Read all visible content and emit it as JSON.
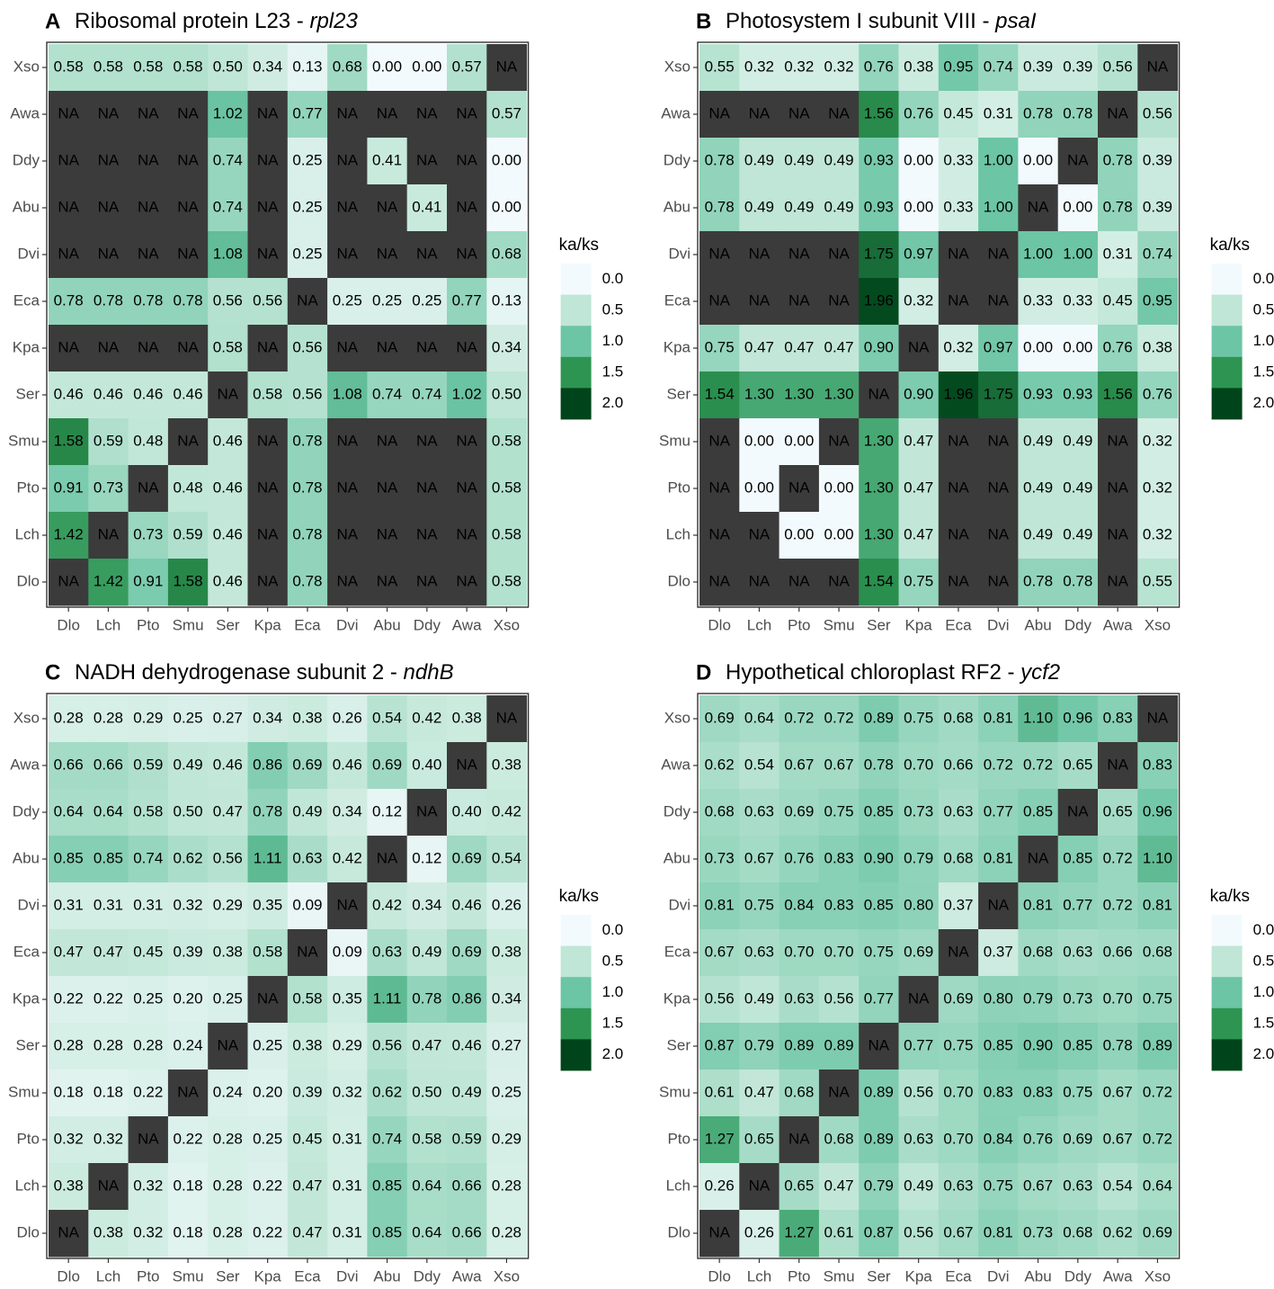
{
  "figure": {
    "legend": {
      "title": "ka/ks",
      "breaks": [
        "0.0",
        "0.5",
        "1.0",
        "1.5",
        "2.0"
      ],
      "color_stops": [
        {
          "v": 0.0,
          "c": "#f3fafd"
        },
        {
          "v": 0.5,
          "c": "#bfe6d6"
        },
        {
          "v": 1.0,
          "c": "#6cc5a5"
        },
        {
          "v": 1.5,
          "c": "#2e9452"
        },
        {
          "v": 2.0,
          "c": "#00441b"
        }
      ],
      "na_color": "#3b3b3b"
    }
  },
  "chart_data": [
    {
      "type": "heatmap",
      "letter": "A",
      "title": "Ribosomal protein L23 - ",
      "title_italic": "rpl23",
      "x": [
        "Dlo",
        "Lch",
        "Pto",
        "Smu",
        "Ser",
        "Kpa",
        "Eca",
        "Dvi",
        "Abu",
        "Ddy",
        "Awa",
        "Xso"
      ],
      "y": [
        "Xso",
        "Awa",
        "Ddy",
        "Abu",
        "Dvi",
        "Eca",
        "Kpa",
        "Ser",
        "Smu",
        "Pto",
        "Lch",
        "Dlo"
      ],
      "values": [
        [
          "0.58",
          "0.58",
          "0.58",
          "0.58",
          "0.50",
          "0.34",
          "0.13",
          "0.68",
          "0.00",
          "0.00",
          "0.57",
          "NA"
        ],
        [
          "NA",
          "NA",
          "NA",
          "NA",
          "1.02",
          "NA",
          "0.77",
          "NA",
          "NA",
          "NA",
          "NA",
          "0.57"
        ],
        [
          "NA",
          "NA",
          "NA",
          "NA",
          "0.74",
          "NA",
          "0.25",
          "NA",
          "0.41",
          "NA",
          "NA",
          "0.00"
        ],
        [
          "NA",
          "NA",
          "NA",
          "NA",
          "0.74",
          "NA",
          "0.25",
          "NA",
          "NA",
          "0.41",
          "NA",
          "0.00"
        ],
        [
          "NA",
          "NA",
          "NA",
          "NA",
          "1.08",
          "NA",
          "0.25",
          "NA",
          "NA",
          "NA",
          "NA",
          "0.68"
        ],
        [
          "0.78",
          "0.78",
          "0.78",
          "0.78",
          "0.56",
          "0.56",
          "NA",
          "0.25",
          "0.25",
          "0.25",
          "0.77",
          "0.13"
        ],
        [
          "NA",
          "NA",
          "NA",
          "NA",
          "0.58",
          "NA",
          "0.56",
          "NA",
          "NA",
          "NA",
          "NA",
          "0.34"
        ],
        [
          "0.46",
          "0.46",
          "0.46",
          "0.46",
          "NA",
          "0.58",
          "0.56",
          "1.08",
          "0.74",
          "0.74",
          "1.02",
          "0.50"
        ],
        [
          "1.58",
          "0.59",
          "0.48",
          "NA",
          "0.46",
          "NA",
          "0.78",
          "NA",
          "NA",
          "NA",
          "NA",
          "0.58"
        ],
        [
          "0.91",
          "0.73",
          "NA",
          "0.48",
          "0.46",
          "NA",
          "0.78",
          "NA",
          "NA",
          "NA",
          "NA",
          "0.58"
        ],
        [
          "1.42",
          "NA",
          "0.73",
          "0.59",
          "0.46",
          "NA",
          "0.78",
          "NA",
          "NA",
          "NA",
          "NA",
          "0.58"
        ],
        [
          "NA",
          "1.42",
          "0.91",
          "1.58",
          "0.46",
          "NA",
          "0.78",
          "NA",
          "NA",
          "NA",
          "NA",
          "0.58"
        ]
      ]
    },
    {
      "type": "heatmap",
      "letter": "B",
      "title": "Photosystem I subunit VIII - ",
      "title_italic": "psaI",
      "x": [
        "Dlo",
        "Lch",
        "Pto",
        "Smu",
        "Ser",
        "Kpa",
        "Eca",
        "Dvi",
        "Abu",
        "Ddy",
        "Awa",
        "Xso"
      ],
      "y": [
        "Xso",
        "Awa",
        "Ddy",
        "Abu",
        "Dvi",
        "Eca",
        "Kpa",
        "Ser",
        "Smu",
        "Pto",
        "Lch",
        "Dlo"
      ],
      "values": [
        [
          "0.55",
          "0.32",
          "0.32",
          "0.32",
          "0.76",
          "0.38",
          "0.95",
          "0.74",
          "0.39",
          "0.39",
          "0.56",
          "NA"
        ],
        [
          "NA",
          "NA",
          "NA",
          "NA",
          "1.56",
          "0.76",
          "0.45",
          "0.31",
          "0.78",
          "0.78",
          "NA",
          "0.56"
        ],
        [
          "0.78",
          "0.49",
          "0.49",
          "0.49",
          "0.93",
          "0.00",
          "0.33",
          "1.00",
          "0.00",
          "NA",
          "0.78",
          "0.39"
        ],
        [
          "0.78",
          "0.49",
          "0.49",
          "0.49",
          "0.93",
          "0.00",
          "0.33",
          "1.00",
          "NA",
          "0.00",
          "0.78",
          "0.39"
        ],
        [
          "NA",
          "NA",
          "NA",
          "NA",
          "1.75",
          "0.97",
          "NA",
          "NA",
          "1.00",
          "1.00",
          "0.31",
          "0.74"
        ],
        [
          "NA",
          "NA",
          "NA",
          "NA",
          "1.96",
          "0.32",
          "NA",
          "NA",
          "0.33",
          "0.33",
          "0.45",
          "0.95"
        ],
        [
          "0.75",
          "0.47",
          "0.47",
          "0.47",
          "0.90",
          "NA",
          "0.32",
          "0.97",
          "0.00",
          "0.00",
          "0.76",
          "0.38"
        ],
        [
          "1.54",
          "1.30",
          "1.30",
          "1.30",
          "NA",
          "0.90",
          "1.96",
          "1.75",
          "0.93",
          "0.93",
          "1.56",
          "0.76"
        ],
        [
          "NA",
          "0.00",
          "0.00",
          "NA",
          "1.30",
          "0.47",
          "NA",
          "NA",
          "0.49",
          "0.49",
          "NA",
          "0.32"
        ],
        [
          "NA",
          "0.00",
          "NA",
          "0.00",
          "1.30",
          "0.47",
          "NA",
          "NA",
          "0.49",
          "0.49",
          "NA",
          "0.32"
        ],
        [
          "NA",
          "NA",
          "0.00",
          "0.00",
          "1.30",
          "0.47",
          "NA",
          "NA",
          "0.49",
          "0.49",
          "NA",
          "0.32"
        ],
        [
          "NA",
          "NA",
          "NA",
          "NA",
          "1.54",
          "0.75",
          "NA",
          "NA",
          "0.78",
          "0.78",
          "NA",
          "0.55"
        ]
      ]
    },
    {
      "type": "heatmap",
      "letter": "C",
      "title": "NADH dehydrogenase subunit 2 - ",
      "title_italic": "ndhB",
      "x": [
        "Dlo",
        "Lch",
        "Pto",
        "Smu",
        "Ser",
        "Kpa",
        "Eca",
        "Dvi",
        "Abu",
        "Ddy",
        "Awa",
        "Xso"
      ],
      "y": [
        "Xso",
        "Awa",
        "Ddy",
        "Abu",
        "Dvi",
        "Eca",
        "Kpa",
        "Ser",
        "Smu",
        "Pto",
        "Lch",
        "Dlo"
      ],
      "values": [
        [
          "0.28",
          "0.28",
          "0.29",
          "0.25",
          "0.27",
          "0.34",
          "0.38",
          "0.26",
          "0.54",
          "0.42",
          "0.38",
          "NA"
        ],
        [
          "0.66",
          "0.66",
          "0.59",
          "0.49",
          "0.46",
          "0.86",
          "0.69",
          "0.46",
          "0.69",
          "0.40",
          "NA",
          "0.38"
        ],
        [
          "0.64",
          "0.64",
          "0.58",
          "0.50",
          "0.47",
          "0.78",
          "0.49",
          "0.34",
          "0.12",
          "NA",
          "0.40",
          "0.42"
        ],
        [
          "0.85",
          "0.85",
          "0.74",
          "0.62",
          "0.56",
          "1.11",
          "0.63",
          "0.42",
          "NA",
          "0.12",
          "0.69",
          "0.54"
        ],
        [
          "0.31",
          "0.31",
          "0.31",
          "0.32",
          "0.29",
          "0.35",
          "0.09",
          "NA",
          "0.42",
          "0.34",
          "0.46",
          "0.26"
        ],
        [
          "0.47",
          "0.47",
          "0.45",
          "0.39",
          "0.38",
          "0.58",
          "NA",
          "0.09",
          "0.63",
          "0.49",
          "0.69",
          "0.38"
        ],
        [
          "0.22",
          "0.22",
          "0.25",
          "0.20",
          "0.25",
          "NA",
          "0.58",
          "0.35",
          "1.11",
          "0.78",
          "0.86",
          "0.34"
        ],
        [
          "0.28",
          "0.28",
          "0.28",
          "0.24",
          "NA",
          "0.25",
          "0.38",
          "0.29",
          "0.56",
          "0.47",
          "0.46",
          "0.27"
        ],
        [
          "0.18",
          "0.18",
          "0.22",
          "NA",
          "0.24",
          "0.20",
          "0.39",
          "0.32",
          "0.62",
          "0.50",
          "0.49",
          "0.25"
        ],
        [
          "0.32",
          "0.32",
          "NA",
          "0.22",
          "0.28",
          "0.25",
          "0.45",
          "0.31",
          "0.74",
          "0.58",
          "0.59",
          "0.29"
        ],
        [
          "0.38",
          "NA",
          "0.32",
          "0.18",
          "0.28",
          "0.22",
          "0.47",
          "0.31",
          "0.85",
          "0.64",
          "0.66",
          "0.28"
        ],
        [
          "NA",
          "0.38",
          "0.32",
          "0.18",
          "0.28",
          "0.22",
          "0.47",
          "0.31",
          "0.85",
          "0.64",
          "0.66",
          "0.28"
        ]
      ]
    },
    {
      "type": "heatmap",
      "letter": "D",
      "title": "Hypothetical chloroplast RF2 - ",
      "title_italic": "ycf2",
      "x": [
        "Dlo",
        "Lch",
        "Pto",
        "Smu",
        "Ser",
        "Kpa",
        "Eca",
        "Dvi",
        "Abu",
        "Ddy",
        "Awa",
        "Xso"
      ],
      "y": [
        "Xso",
        "Awa",
        "Ddy",
        "Abu",
        "Dvi",
        "Eca",
        "Kpa",
        "Ser",
        "Smu",
        "Pto",
        "Lch",
        "Dlo"
      ],
      "values": [
        [
          "0.69",
          "0.64",
          "0.72",
          "0.72",
          "0.89",
          "0.75",
          "0.68",
          "0.81",
          "1.10",
          "0.96",
          "0.83",
          "NA"
        ],
        [
          "0.62",
          "0.54",
          "0.67",
          "0.67",
          "0.78",
          "0.70",
          "0.66",
          "0.72",
          "0.72",
          "0.65",
          "NA",
          "0.83"
        ],
        [
          "0.68",
          "0.63",
          "0.69",
          "0.75",
          "0.85",
          "0.73",
          "0.63",
          "0.77",
          "0.85",
          "NA",
          "0.65",
          "0.96"
        ],
        [
          "0.73",
          "0.67",
          "0.76",
          "0.83",
          "0.90",
          "0.79",
          "0.68",
          "0.81",
          "NA",
          "0.85",
          "0.72",
          "1.10"
        ],
        [
          "0.81",
          "0.75",
          "0.84",
          "0.83",
          "0.85",
          "0.80",
          "0.37",
          "NA",
          "0.81",
          "0.77",
          "0.72",
          "0.81"
        ],
        [
          "0.67",
          "0.63",
          "0.70",
          "0.70",
          "0.75",
          "0.69",
          "NA",
          "0.37",
          "0.68",
          "0.63",
          "0.66",
          "0.68"
        ],
        [
          "0.56",
          "0.49",
          "0.63",
          "0.56",
          "0.77",
          "NA",
          "0.69",
          "0.80",
          "0.79",
          "0.73",
          "0.70",
          "0.75"
        ],
        [
          "0.87",
          "0.79",
          "0.89",
          "0.89",
          "NA",
          "0.77",
          "0.75",
          "0.85",
          "0.90",
          "0.85",
          "0.78",
          "0.89"
        ],
        [
          "0.61",
          "0.47",
          "0.68",
          "NA",
          "0.89",
          "0.56",
          "0.70",
          "0.83",
          "0.83",
          "0.75",
          "0.67",
          "0.72"
        ],
        [
          "1.27",
          "0.65",
          "NA",
          "0.68",
          "0.89",
          "0.63",
          "0.70",
          "0.84",
          "0.76",
          "0.69",
          "0.67",
          "0.72"
        ],
        [
          "0.26",
          "NA",
          "0.65",
          "0.47",
          "0.79",
          "0.49",
          "0.63",
          "0.75",
          "0.67",
          "0.63",
          "0.54",
          "0.64"
        ],
        [
          "NA",
          "0.26",
          "1.27",
          "0.61",
          "0.87",
          "0.56",
          "0.67",
          "0.81",
          "0.73",
          "0.68",
          "0.62",
          "0.69"
        ]
      ]
    }
  ]
}
